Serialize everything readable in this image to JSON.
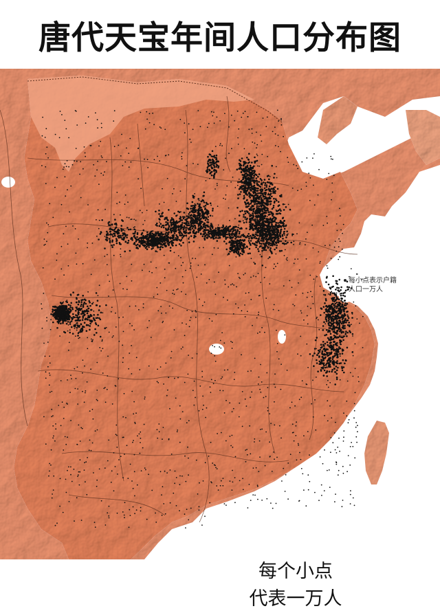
{
  "title": "唐代天宝年间人口分布图",
  "legend": {
    "line1": "每小点表示户籍",
    "line2": "人口一万人"
  },
  "caption": {
    "line1": "每个小点",
    "line2": "代表一万人"
  },
  "colors": {
    "land_inside": "#ea8a62",
    "land_outside": "#ed8f68",
    "sea": "#ffffff",
    "border": "#5a2f1e",
    "dot": "#111111",
    "desert_pale": "#f3a98a"
  },
  "map_unit_per_dot": 10000
}
